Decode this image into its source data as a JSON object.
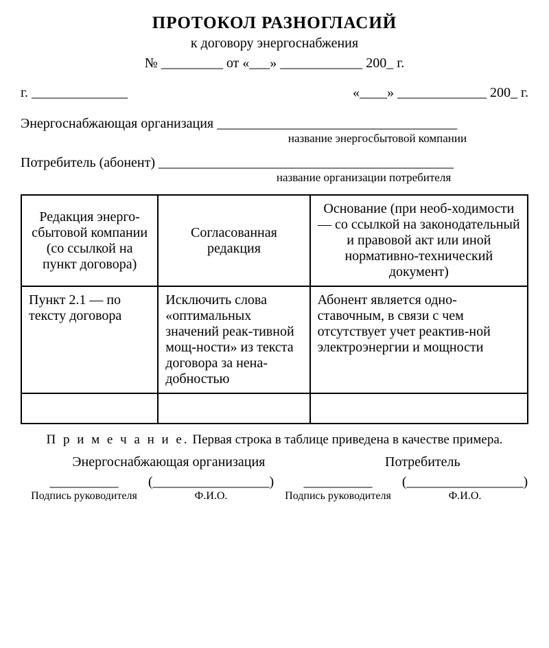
{
  "header": {
    "title": "ПРОТОКОЛ  РАЗНОГЛАСИЙ",
    "subtitle": "к договору энергоснабжения",
    "number_line": "№ _________  от «___» ____________ 200_ г.",
    "left_city": "г. ______________",
    "right_date": "«____» _____________ 200_  г."
  },
  "org": {
    "label": "Энергоснабжающая организация ___________________________________",
    "caption": "название энергосбытовой компании"
  },
  "consumer": {
    "label": "Потребитель (абонент) ___________________________________________",
    "caption": "название организации потребителя"
  },
  "table": {
    "columns": [
      "Редакция энерго-сбытовой компании (со ссылкой на пункт договора)",
      "Согласованная редакция",
      "Основание (при необ-ходимости — со ссылкой на законодательный и правовой акт или иной нормативно-технический документ)"
    ],
    "rows": [
      [
        "Пункт 2.1 — по тексту договора",
        "Исключить слова «оптимальных значений реак-тивной мощ-ности» из текста договора за нена-добностью",
        "Абонент является одно-ставочным, в связи с чем отсутствует учет реактив-ной электроэнергии и мощности"
      ],
      [
        "",
        "",
        ""
      ]
    ],
    "col_widths": [
      "27%",
      "30%",
      "43%"
    ],
    "border_color": "#000000",
    "header_fontsize": 20,
    "cell_fontsize": 20
  },
  "note": {
    "label": "П р и м е ч а н и е.",
    "text": "Первая строка в таблице приведена в качестве примера."
  },
  "signatures": {
    "left_title": "Энергоснабжающая организация",
    "right_title": "Потребитель",
    "line_left": "__________",
    "line_mid_l": "(_________________)",
    "line_mid_r": "__________",
    "line_right": "(_________________)",
    "cap1": "Подпись руководителя",
    "cap2": "Ф.И.О.",
    "cap3": "Подпись руководителя",
    "cap4": "Ф.И.О."
  },
  "style": {
    "background": "#ffffff",
    "text_color": "#000000",
    "font_family": "Times New Roman"
  }
}
